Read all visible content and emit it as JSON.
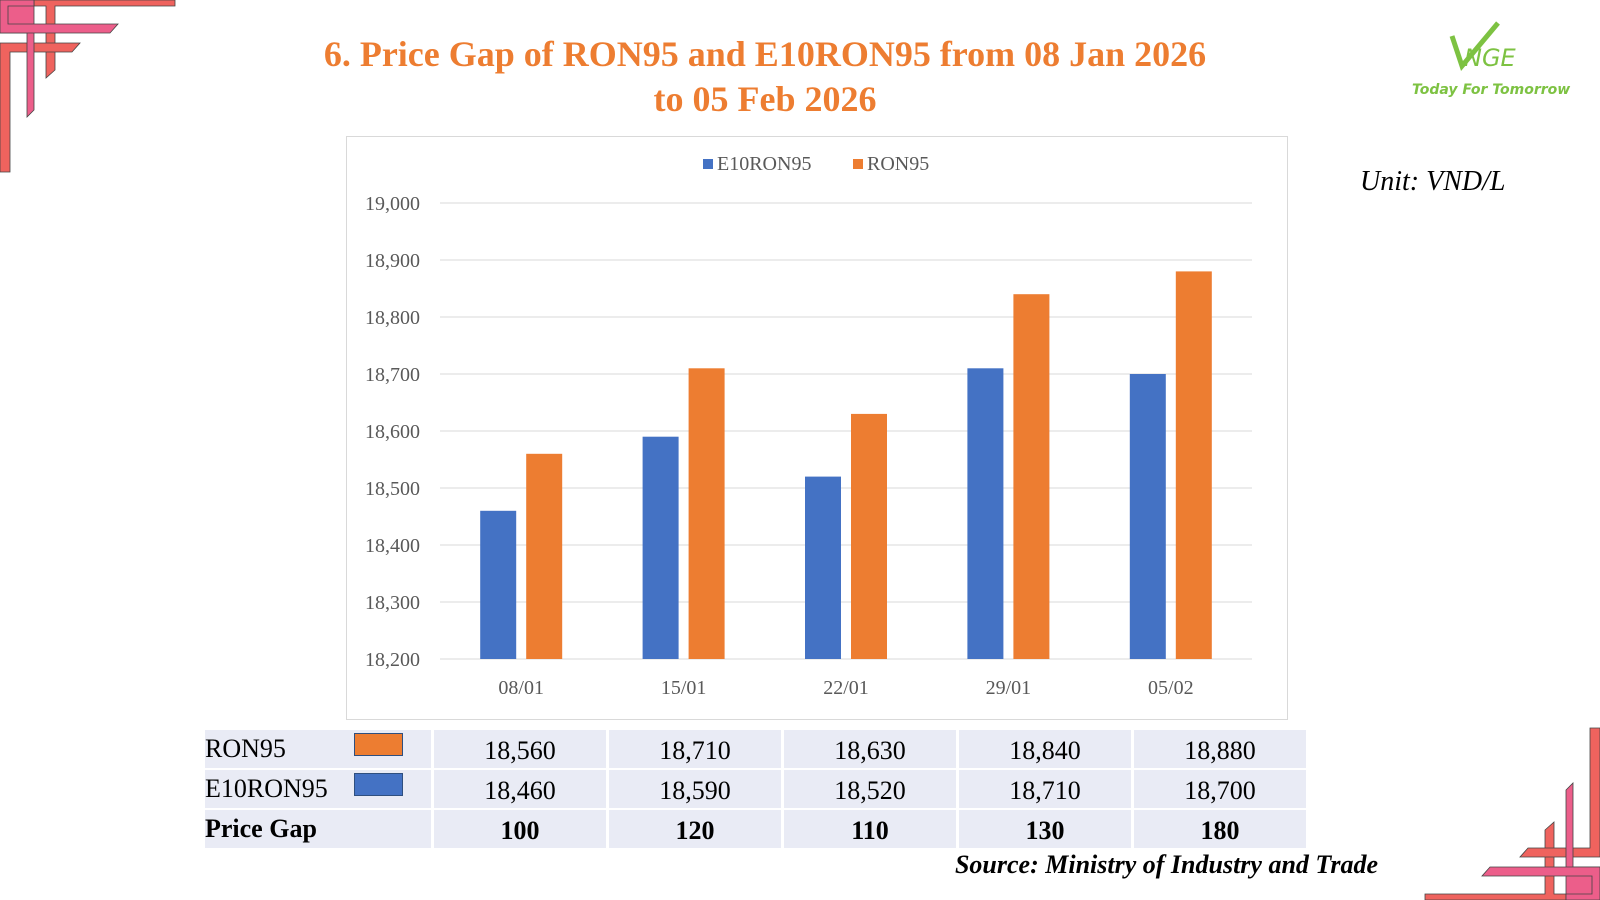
{
  "title": "6. Price Gap of RON95 and E10RON95 from 08 Jan 2026 to 05 Feb 2026",
  "title_line1": "6. Price Gap of RON95 and E10RON95 from 08 Jan 2026",
  "title_line2": "to 05 Feb 2026",
  "unit": "Unit: VND/L",
  "logo": {
    "text": "VNGE",
    "tagline": "Today For Tomorrow"
  },
  "source": "Source: Ministry of Industry and Trade",
  "colors": {
    "e10ron95": "#4472c4",
    "ron95": "#ed7d31",
    "title": "#ed7d31",
    "logo": "#7dc242"
  },
  "chart_data": {
    "type": "bar",
    "categories": [
      "08/01",
      "15/01",
      "22/01",
      "29/01",
      "05/02"
    ],
    "series": [
      {
        "name": "E10RON95",
        "values": [
          18460,
          18590,
          18520,
          18710,
          18700
        ],
        "color": "#4472c4"
      },
      {
        "name": "RON95",
        "values": [
          18560,
          18710,
          18630,
          18840,
          18880
        ],
        "color": "#ed7d31"
      }
    ],
    "ylim": [
      18200,
      19000
    ],
    "yticks": [
      "18,200",
      "18,300",
      "18,400",
      "18,500",
      "18,600",
      "18,700",
      "18,800",
      "18,900",
      "19,000"
    ],
    "grid": true,
    "legend": "top"
  },
  "table": {
    "rows": [
      {
        "label": "RON95",
        "values": [
          "18,560",
          "18,710",
          "18,630",
          "18,840",
          "18,880"
        ]
      },
      {
        "label": "E10RON95",
        "values": [
          "18,460",
          "18,590",
          "18,520",
          "18,710",
          "18,700"
        ]
      },
      {
        "label": "Price Gap",
        "values": [
          "100",
          "120",
          "110",
          "130",
          "180"
        ]
      }
    ]
  }
}
